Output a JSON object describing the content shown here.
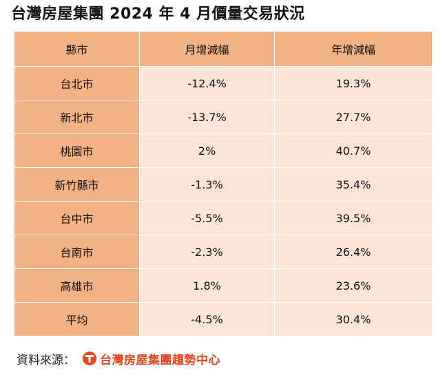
{
  "title": "台灣房屋集團 2024 年 4 月價量交易狀況",
  "table": {
    "headers": [
      "縣市",
      "月增減幅",
      "年增減幅"
    ],
    "rows": [
      {
        "city": "台北市",
        "mom": "-12.4%",
        "yoy": "19.3%"
      },
      {
        "city": "新北市",
        "mom": "-13.7%",
        "yoy": "27.7%"
      },
      {
        "city": "桃園市",
        "mom": "2%",
        "yoy": "40.7%"
      },
      {
        "city": "新竹縣市",
        "mom": "-1.3%",
        "yoy": "35.4%"
      },
      {
        "city": "台中市",
        "mom": "-5.5%",
        "yoy": "39.5%"
      },
      {
        "city": "台南市",
        "mom": "-2.3%",
        "yoy": "26.4%"
      },
      {
        "city": "高雄市",
        "mom": "1.8%",
        "yoy": "23.6%"
      },
      {
        "city": "平均",
        "mom": "-4.5%",
        "yoy": "30.4%"
      }
    ]
  },
  "source": {
    "label": "資料來源：",
    "logo_text": "台灣房屋集團趨勢中心",
    "logo_icon": "taiwan-realty-logo-icon"
  },
  "colors": {
    "header_and_city_bg": "#F4B183",
    "value_bg": "#FBE5D6",
    "logo": "#E8471E"
  }
}
